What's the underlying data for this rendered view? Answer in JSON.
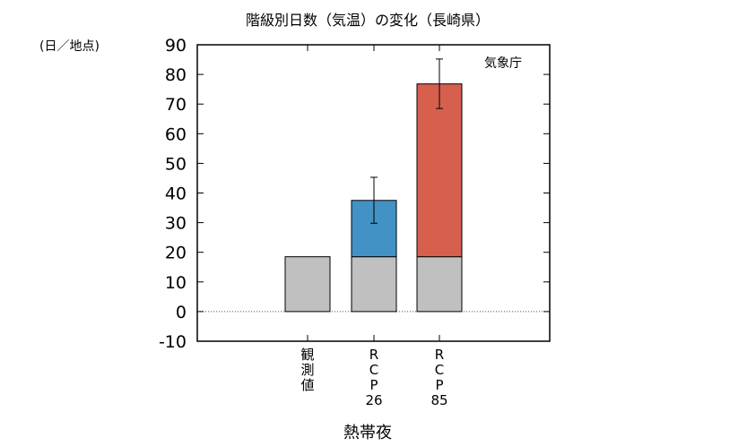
{
  "chart_data": {
    "type": "bar",
    "title": "階級別日数（気温）の変化（長崎県）",
    "unit_label": "(日／地点)",
    "source": "気象庁",
    "xlabel": "熱帯夜",
    "ylabel": "",
    "ylim": [
      -10,
      90
    ],
    "yticks": [
      -10,
      0,
      10,
      20,
      30,
      40,
      50,
      60,
      70,
      80,
      90
    ],
    "grid": false,
    "legend": "none",
    "categories": [
      [
        "観",
        "測",
        "値"
      ],
      [
        "R",
        "C",
        "P",
        "26"
      ],
      [
        "R",
        "C",
        "P",
        "85"
      ]
    ],
    "series": [
      {
        "values": [
          18.5,
          18.5,
          18.5
        ],
        "color": "#c0c0c0"
      },
      {
        "values": [
          0,
          19,
          58.3
        ],
        "colors": [
          "#c0c0c0",
          "#4292c6",
          "#d6604d"
        ]
      }
    ],
    "totals": [
      18.5,
      37.5,
      76.8
    ],
    "error_bars": [
      null,
      {
        "low": 29.8,
        "high": 45.3
      },
      {
        "low": 68.5,
        "high": 85.2
      }
    ]
  }
}
